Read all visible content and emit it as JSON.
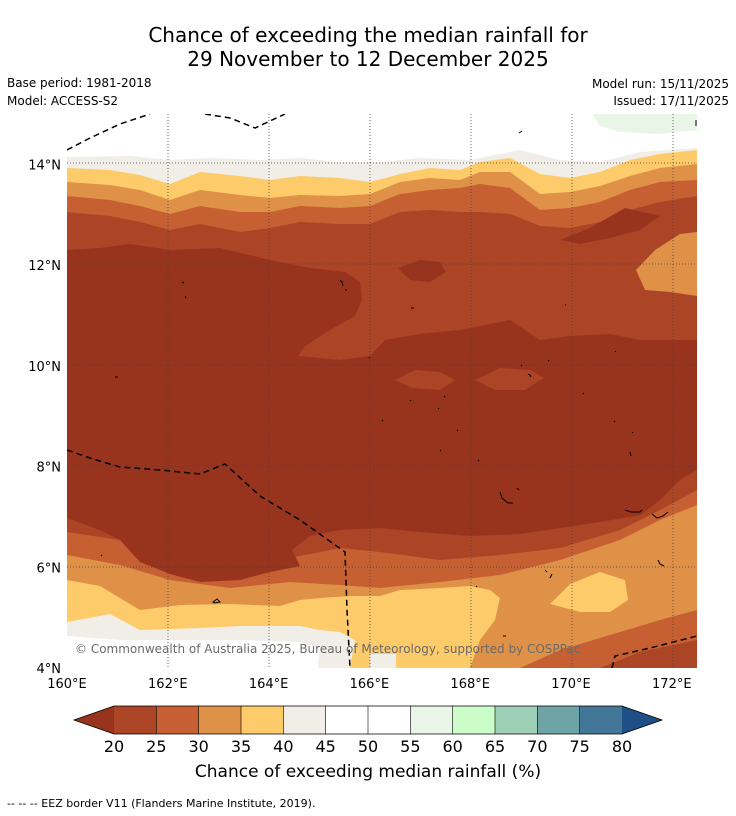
{
  "title": {
    "line1": "Chance of exceeding the median rainfall for",
    "line2": "29 November to 12 December 2025"
  },
  "meta": {
    "base_period": "Base period: 1981-2018",
    "model": "Model: ACCESS-S2",
    "model_run": "Model run: 15/11/2025",
    "issued": "Issued: 17/11/2025"
  },
  "map": {
    "longitude_ticks": [
      "160°E",
      "162°E",
      "164°E",
      "166°E",
      "168°E",
      "170°E",
      "172°E"
    ],
    "latitude_ticks": [
      "14°N",
      "12°N",
      "10°N",
      "8°N",
      "6°N",
      "4°N"
    ],
    "lon_range": [
      160,
      172.5
    ],
    "lat_range": [
      4,
      15
    ],
    "copyright": "© Commonwealth of Australia 2025, Bureau of Meteorology, supported by COSPPac"
  },
  "colorbar": {
    "title": "Chance of exceeding median rainfall (%)",
    "labels": [
      "20",
      "25",
      "30",
      "35",
      "40",
      "45",
      "50",
      "55",
      "60",
      "65",
      "70",
      "75",
      "80"
    ],
    "colors": [
      "#ab4526",
      "#c65f31",
      "#df9148",
      "#fdcb69",
      "#f1ede7",
      "#ffffff",
      "#ffffff",
      "#e9f5e6",
      "#cafdc8",
      "#9dcfb6",
      "#6ea4a6",
      "#437797"
    ],
    "low_color": "#98331d",
    "high_color": "#1e4f86"
  },
  "legend": {
    "eez": "--  --  -- EEZ border V11 (Flanders Marine Institute, 2019)."
  }
}
